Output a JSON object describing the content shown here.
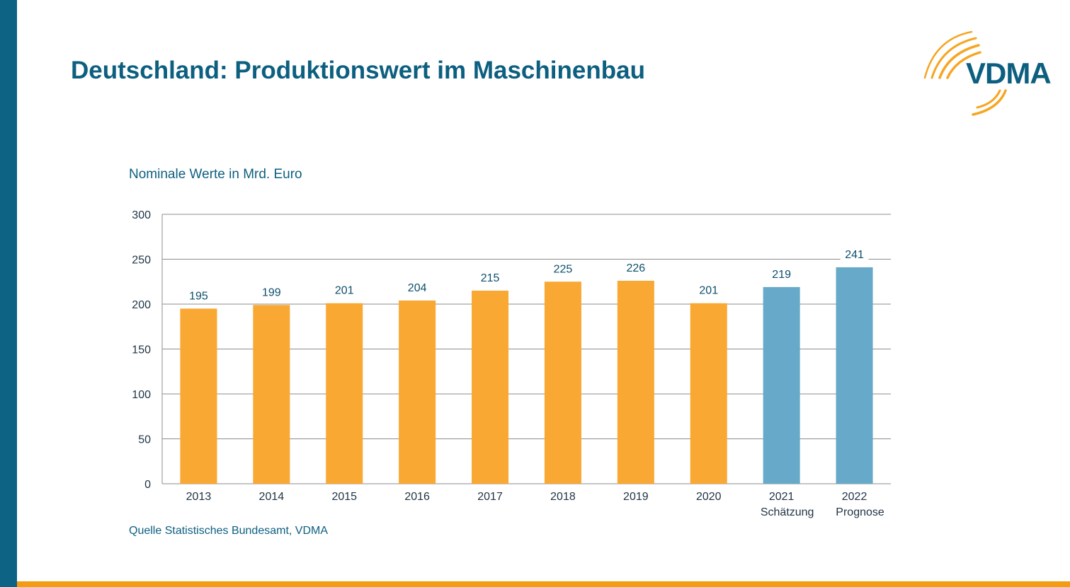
{
  "header": {
    "title": "Deutschland: Produktionswert im Maschinenbau",
    "logo_text": "VDMA"
  },
  "chart_data": {
    "type": "bar",
    "subtitle": "Nominale Werte in Mrd. Euro",
    "source": "Quelle Statistisches Bundesamt, VDMA",
    "categories": [
      "2013",
      "2014",
      "2015",
      "2016",
      "2017",
      "2018",
      "2019",
      "2020",
      "2021",
      "2022"
    ],
    "category_notes": [
      "",
      "",
      "",
      "",
      "",
      "",
      "",
      "",
      "Schätzung",
      "Prognose"
    ],
    "values": [
      195,
      199,
      201,
      204,
      215,
      225,
      226,
      201,
      219,
      241
    ],
    "bar_colors": [
      "#f9a833",
      "#f9a833",
      "#f9a833",
      "#f9a833",
      "#f9a833",
      "#f9a833",
      "#f9a833",
      "#f9a833",
      "#66a9c8",
      "#66a9c8"
    ],
    "ylim": [
      0,
      300
    ],
    "yticks": [
      0,
      50,
      100,
      150,
      200,
      250,
      300
    ],
    "grid": true
  },
  "colors": {
    "accent_blue": "#0d6383",
    "accent_orange": "#f39c12"
  }
}
